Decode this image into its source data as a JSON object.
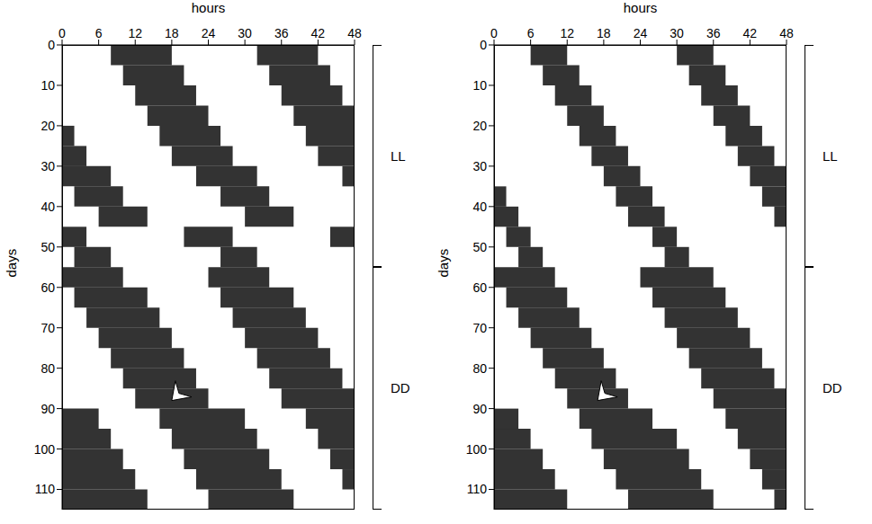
{
  "chart_data": [
    {
      "type": "actogram",
      "x_label": "hours",
      "y_label": "days",
      "xlim": [
        0,
        48
      ],
      "xticks": [
        0,
        6,
        12,
        18,
        24,
        30,
        36,
        42,
        48
      ],
      "ylim": [
        0,
        115
      ],
      "yticks": [
        0,
        10,
        20,
        30,
        40,
        50,
        60,
        70,
        80,
        90,
        100,
        110
      ],
      "color": "#000000",
      "phases": [
        {
          "label": "LL",
          "start": 0,
          "end": 55
        },
        {
          "label": "DD",
          "start": 55,
          "end": 115
        }
      ],
      "arrow": {
        "hour": 18,
        "day": 88
      },
      "rows": [
        {
          "day": 0,
          "segments": [
            [
              8,
              18
            ],
            [
              32,
              42
            ]
          ]
        },
        {
          "day": 5,
          "segments": [
            [
              10,
              20
            ],
            [
              34,
              44
            ]
          ]
        },
        {
          "day": 10,
          "segments": [
            [
              12,
              22
            ],
            [
              36,
              46
            ]
          ]
        },
        {
          "day": 15,
          "segments": [
            [
              14,
              24
            ],
            [
              38,
              48
            ]
          ]
        },
        {
          "day": 20,
          "segments": [
            [
              0,
              2
            ],
            [
              16,
              26
            ],
            [
              40,
              48
            ]
          ]
        },
        {
          "day": 25,
          "segments": [
            [
              0,
              4
            ],
            [
              18,
              28
            ],
            [
              42,
              48
            ]
          ]
        },
        {
          "day": 30,
          "segments": [
            [
              0,
              8
            ],
            [
              22,
              32
            ],
            [
              46,
              48
            ]
          ]
        },
        {
          "day": 35,
          "segments": [
            [
              2,
              10
            ],
            [
              26,
              34
            ]
          ]
        },
        {
          "day": 40,
          "segments": [
            [
              6,
              14
            ],
            [
              30,
              38
            ]
          ]
        },
        {
          "day": 45,
          "segments": [
            [
              0,
              4
            ],
            [
              20,
              28
            ],
            [
              44,
              48
            ]
          ]
        },
        {
          "day": 50,
          "segments": [
            [
              2,
              8
            ],
            [
              26,
              32
            ]
          ]
        },
        {
          "day": 55,
          "segments": [
            [
              0,
              10
            ],
            [
              24,
              34
            ]
          ]
        },
        {
          "day": 60,
          "segments": [
            [
              2,
              14
            ],
            [
              26,
              38
            ]
          ]
        },
        {
          "day": 65,
          "segments": [
            [
              4,
              16
            ],
            [
              28,
              40
            ]
          ]
        },
        {
          "day": 70,
          "segments": [
            [
              6,
              18
            ],
            [
              30,
              42
            ]
          ]
        },
        {
          "day": 75,
          "segments": [
            [
              8,
              20
            ],
            [
              32,
              44
            ]
          ]
        },
        {
          "day": 80,
          "segments": [
            [
              10,
              22
            ],
            [
              34,
              46
            ]
          ]
        },
        {
          "day": 85,
          "segments": [
            [
              12,
              24
            ],
            [
              36,
              48
            ]
          ]
        },
        {
          "day": 90,
          "segments": [
            [
              0,
              6
            ],
            [
              16,
              30
            ],
            [
              40,
              48
            ]
          ]
        },
        {
          "day": 95,
          "segments": [
            [
              0,
              8
            ],
            [
              18,
              32
            ],
            [
              42,
              48
            ]
          ]
        },
        {
          "day": 100,
          "segments": [
            [
              0,
              10
            ],
            [
              20,
              34
            ],
            [
              44,
              48
            ]
          ]
        },
        {
          "day": 105,
          "segments": [
            [
              0,
              12
            ],
            [
              22,
              36
            ],
            [
              46,
              48
            ]
          ]
        },
        {
          "day": 110,
          "segments": [
            [
              0,
              14
            ],
            [
              24,
              38
            ]
          ]
        }
      ]
    },
    {
      "type": "actogram",
      "x_label": "hours",
      "y_label": "days",
      "xlim": [
        0,
        48
      ],
      "xticks": [
        0,
        6,
        12,
        18,
        24,
        30,
        36,
        42,
        48
      ],
      "ylim": [
        0,
        115
      ],
      "yticks": [
        0,
        10,
        20,
        30,
        40,
        50,
        60,
        70,
        80,
        90,
        100,
        110
      ],
      "color": "#000000",
      "phases": [
        {
          "label": "LL",
          "start": 0,
          "end": 55
        },
        {
          "label": "DD",
          "start": 55,
          "end": 115
        }
      ],
      "arrow": {
        "hour": 17,
        "day": 88
      },
      "rows": [
        {
          "day": 0,
          "segments": [
            [
              6,
              12
            ],
            [
              30,
              36
            ]
          ]
        },
        {
          "day": 5,
          "segments": [
            [
              8,
              14
            ],
            [
              32,
              38
            ]
          ]
        },
        {
          "day": 10,
          "segments": [
            [
              10,
              16
            ],
            [
              34,
              40
            ]
          ]
        },
        {
          "day": 15,
          "segments": [
            [
              12,
              18
            ],
            [
              36,
              42
            ]
          ]
        },
        {
          "day": 20,
          "segments": [
            [
              14,
              20
            ],
            [
              38,
              44
            ]
          ]
        },
        {
          "day": 25,
          "segments": [
            [
              16,
              22
            ],
            [
              40,
              46
            ]
          ]
        },
        {
          "day": 30,
          "segments": [
            [
              18,
              24
            ],
            [
              42,
              48
            ]
          ]
        },
        {
          "day": 35,
          "segments": [
            [
              0,
              2
            ],
            [
              20,
              26
            ],
            [
              44,
              48
            ]
          ]
        },
        {
          "day": 40,
          "segments": [
            [
              0,
              4
            ],
            [
              22,
              28
            ],
            [
              46,
              48
            ]
          ]
        },
        {
          "day": 45,
          "segments": [
            [
              2,
              6
            ],
            [
              26,
              30
            ]
          ]
        },
        {
          "day": 50,
          "segments": [
            [
              4,
              8
            ],
            [
              28,
              32
            ]
          ]
        },
        {
          "day": 55,
          "segments": [
            [
              0,
              10
            ],
            [
              24,
              36
            ]
          ]
        },
        {
          "day": 60,
          "segments": [
            [
              2,
              12
            ],
            [
              26,
              38
            ]
          ]
        },
        {
          "day": 65,
          "segments": [
            [
              4,
              14
            ],
            [
              28,
              40
            ]
          ]
        },
        {
          "day": 70,
          "segments": [
            [
              6,
              16
            ],
            [
              30,
              42
            ]
          ]
        },
        {
          "day": 75,
          "segments": [
            [
              8,
              18
            ],
            [
              32,
              44
            ]
          ]
        },
        {
          "day": 80,
          "segments": [
            [
              10,
              20
            ],
            [
              34,
              46
            ]
          ]
        },
        {
          "day": 85,
          "segments": [
            [
              12,
              22
            ],
            [
              36,
              48
            ]
          ]
        },
        {
          "day": 90,
          "segments": [
            [
              0,
              4
            ],
            [
              14,
              26
            ],
            [
              38,
              48
            ]
          ]
        },
        {
          "day": 95,
          "segments": [
            [
              0,
              6
            ],
            [
              16,
              30
            ],
            [
              40,
              48
            ]
          ]
        },
        {
          "day": 100,
          "segments": [
            [
              0,
              8
            ],
            [
              18,
              32
            ],
            [
              42,
              48
            ]
          ]
        },
        {
          "day": 105,
          "segments": [
            [
              0,
              10
            ],
            [
              20,
              34
            ],
            [
              44,
              48
            ]
          ]
        },
        {
          "day": 110,
          "segments": [
            [
              0,
              12
            ],
            [
              22,
              36
            ],
            [
              46,
              48
            ]
          ]
        }
      ]
    }
  ]
}
